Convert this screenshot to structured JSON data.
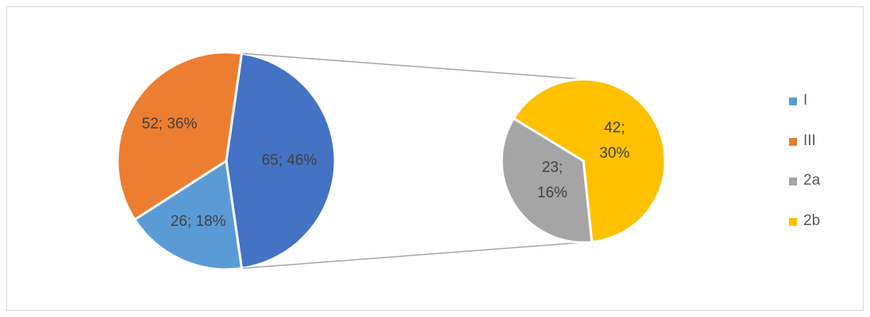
{
  "chart_data": {
    "type": "pie-of-pie",
    "categories": [
      "I",
      "III",
      "2a",
      "2b"
    ],
    "values": [
      26,
      52,
      23,
      42
    ],
    "value_labels": [
      "26; 18%",
      "52; 36%",
      "23; 16%",
      "42; 30%"
    ],
    "colors": [
      "#5b9bd5",
      "#ed7d31",
      "#a5a5a5",
      "#ffc000"
    ],
    "other_value": 65,
    "other_label": "65; 46%",
    "other_color": "#4472c4",
    "legend": "right"
  }
}
